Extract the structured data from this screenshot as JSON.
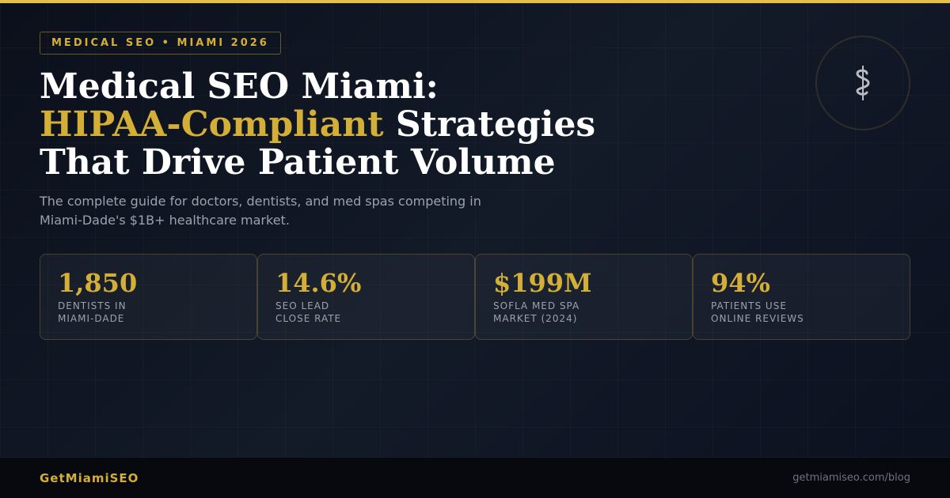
{
  "badge": "MEDICAL SEO • MIAMI 2026",
  "title": {
    "line1": "Medical SEO Miami:",
    "line2_highlight": "HIPAA-Compliant",
    "line2_rest": " Strategies",
    "line3": "That Drive Patient Volume"
  },
  "subtitle": "The complete guide for doctors, dentists, and med spas competing in Miami-Dade's $1B+ healthcare market.",
  "emblem_icon": "caduceus-icon",
  "stats": [
    {
      "value": "1,850",
      "label": "Dentists in\nMiami-Dade"
    },
    {
      "value": "14.6%",
      "label": "SEO Lead\nClose Rate"
    },
    {
      "value": "$199M",
      "label": "SoFla Med Spa\nMarket (2024)"
    },
    {
      "value": "94%",
      "label": "Patients Use\nOnline Reviews"
    }
  ],
  "footer": {
    "brand": "GetMiamiSEO",
    "url": "getmiamiseo.com/blog"
  },
  "colors": {
    "accent": "#d4af37",
    "background": "#0c111c"
  }
}
